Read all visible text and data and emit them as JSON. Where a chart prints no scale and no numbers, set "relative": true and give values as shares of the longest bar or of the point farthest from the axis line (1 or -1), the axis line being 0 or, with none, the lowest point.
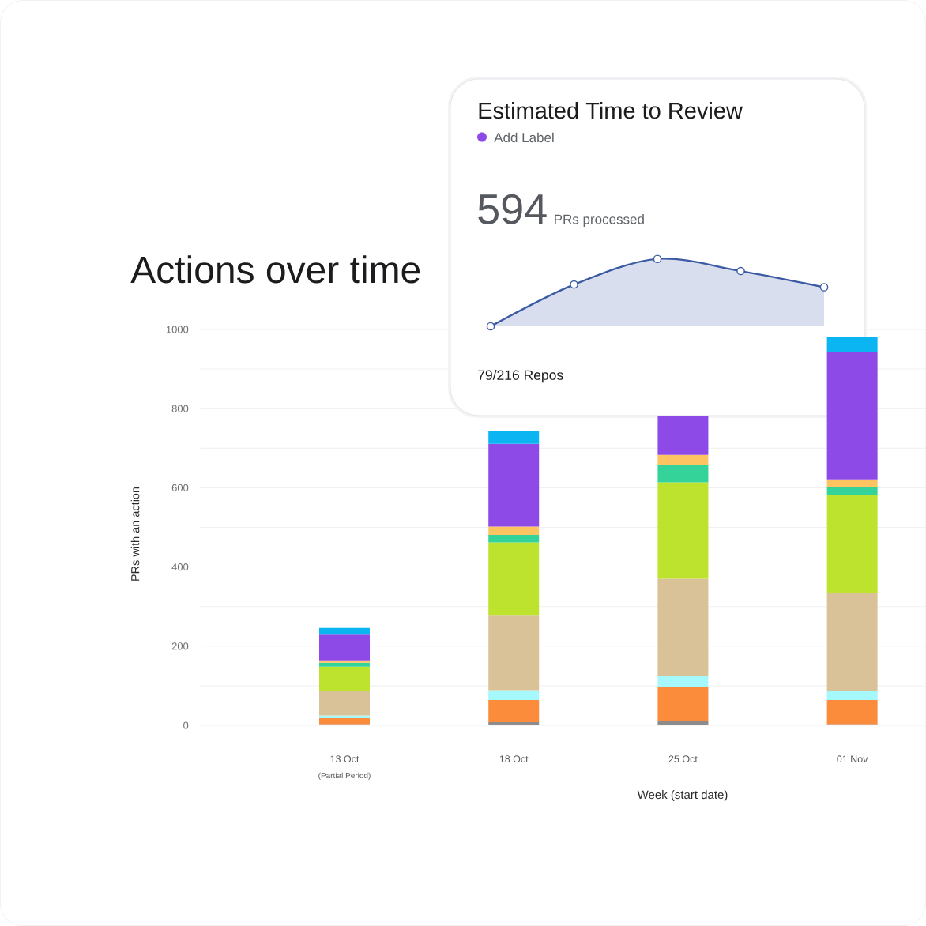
{
  "chart_data": [
    {
      "type": "area",
      "title": "Estimated Time to Review",
      "subtitle": "Add Label",
      "annotations": [
        "594",
        "PRs processed",
        "79/216 Repos"
      ],
      "categories": [
        null,
        null,
        null,
        null,
        null
      ],
      "relative": true,
      "marker": "circle",
      "series": [
        {
          "color": "#3b5aa3",
          "values": [
            0,
            0.62,
            1,
            0.82,
            0.58
          ]
        }
      ]
    },
    {
      "type": "bar",
      "stacked": true,
      "title": "Actions over time",
      "xlabel": "Week (start date)",
      "ylabel": "PRs with an action",
      "annotations": [
        "(Partial Period)"
      ],
      "categories": [
        "13 Oct",
        "18 Oct",
        "25 Oct",
        "01 Nov"
      ],
      "ylim": [
        0,
        1000
      ],
      "yticks": [
        0,
        {
          "value": 100,
          "label": null
        },
        200,
        {
          "value": 300,
          "label": null
        },
        400,
        {
          "value": 500,
          "label": null
        },
        600,
        {
          "value": 700,
          "label": null
        },
        800,
        {
          "value": 900,
          "label": null
        },
        1000
      ],
      "grid": "y",
      "series": [
        {
          "color": "#8c8c8c",
          "values": [
            3,
            8,
            11,
            3
          ]
        },
        {
          "color": "#fa8c3c",
          "values": [
            15,
            56,
            86,
            61
          ]
        },
        {
          "color": "#a5f8fc",
          "values": [
            7,
            25,
            28,
            22
          ]
        },
        {
          "color": "#d9c298",
          "values": [
            61,
            188,
            245,
            248
          ]
        },
        {
          "color": "#bde32f",
          "values": [
            62,
            185,
            244,
            247
          ]
        },
        {
          "color": "#34d399",
          "values": [
            10,
            19,
            43,
            22
          ]
        },
        {
          "color": "#fec461",
          "values": [
            6,
            21,
            26,
            18
          ]
        },
        {
          "color": "#8d4ae6",
          "values": [
            65,
            209,
            99,
            321
          ]
        },
        {
          "color": "#0bb5f2",
          "values": [
            17,
            33,
            null,
            39
          ]
        }
      ]
    }
  ]
}
